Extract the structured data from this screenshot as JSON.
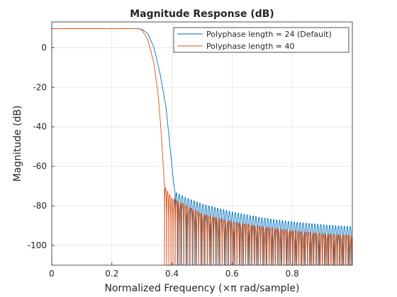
{
  "chart_data": {
    "type": "line",
    "title": "Magnitude Response (dB)",
    "xlabel": "Normalized Frequency (×π rad/sample)",
    "ylabel": "Magnitude (dB)",
    "xlim": [
      0,
      1
    ],
    "ylim": [
      -110,
      13
    ],
    "xticks": [
      0,
      0.2,
      0.4,
      0.6,
      0.8
    ],
    "xtick_labels": [
      "0",
      "0.2",
      "0.4",
      "0.6",
      "0.8"
    ],
    "yticks": [
      0,
      -20,
      -40,
      -60,
      -80,
      -100
    ],
    "ytick_labels": [
      "0",
      "-20",
      "-40",
      "-60",
      "-80",
      "-100"
    ],
    "grid": true,
    "legend_position": "top-right",
    "series": [
      {
        "name": "Polyphase length = 24 (Default)",
        "color": "#0072bd",
        "passband_db": 9.6,
        "transition": [
          [
            0.28,
            9.6
          ],
          [
            0.3,
            9.3
          ],
          [
            0.32,
            7.0
          ],
          [
            0.34,
            0.0
          ],
          [
            0.36,
            -13.0
          ],
          [
            0.38,
            -30.0
          ],
          [
            0.39,
            -45.0
          ],
          [
            0.4,
            -60.0
          ],
          [
            0.405,
            -68.0
          ],
          [
            0.41,
            -73.0
          ]
        ],
        "stopband_peak_envelope": [
          [
            0.41,
            -73
          ],
          [
            0.45,
            -76
          ],
          [
            0.5,
            -79
          ],
          [
            0.6,
            -83
          ],
          [
            0.7,
            -86
          ],
          [
            0.8,
            -88
          ],
          [
            0.9,
            -89.5
          ],
          [
            1.0,
            -90.5
          ]
        ],
        "stopband_null_floor_db": -110
      },
      {
        "name": "Polyphase length = 40",
        "color": "#d95319",
        "passband_db": 9.6,
        "transition": [
          [
            0.29,
            9.6
          ],
          [
            0.3,
            9.0
          ],
          [
            0.32,
            4.0
          ],
          [
            0.34,
            -8.0
          ],
          [
            0.355,
            -25.0
          ],
          [
            0.365,
            -45.0
          ],
          [
            0.375,
            -70.0
          ]
        ],
        "stopband_peak_envelope": [
          [
            0.375,
            -70
          ],
          [
            0.4,
            -76
          ],
          [
            0.5,
            -84
          ],
          [
            0.6,
            -88
          ],
          [
            0.7,
            -90.5
          ],
          [
            0.8,
            -92.5
          ],
          [
            0.9,
            -94
          ],
          [
            1.0,
            -95
          ]
        ],
        "stopband_null_floor_db": -110
      }
    ]
  }
}
